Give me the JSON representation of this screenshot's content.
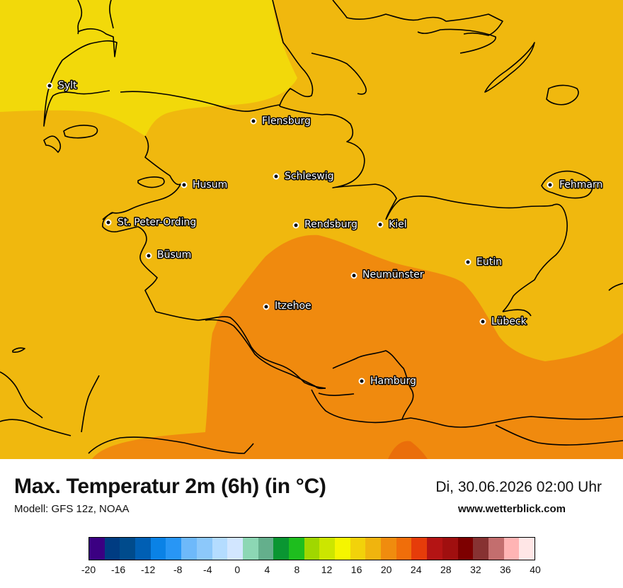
{
  "header": {
    "title": "Max. Temperatur 2m (6h) (in °C)",
    "model": "Modell: GFS 12z, NOAA",
    "datetime": "Di, 30.06.2026 02:00 Uhr",
    "website": "www.wetterblick.com"
  },
  "map": {
    "colors": {
      "zone_16_18": "#f2d90a",
      "zone_18_20": "#f0b80e",
      "zone_20_22": "#f08a0e",
      "zone_22_24": "#ea6e0a",
      "coastline": "#000000"
    },
    "cities": [
      {
        "name": "Sylt",
        "label": "Sylt"
      },
      {
        "name": "Flensburg",
        "label": "Flensburg"
      },
      {
        "name": "Husum",
        "label": "Husum"
      },
      {
        "name": "Schleswig",
        "label": "Schleswig"
      },
      {
        "name": "Fehmarn",
        "label": "Fehmarn"
      },
      {
        "name": "St. Peter-Ording",
        "label": "St. Peter-Ording"
      },
      {
        "name": "Rendsburg",
        "label": "Rendsburg"
      },
      {
        "name": "Kiel",
        "label": "Kiel"
      },
      {
        "name": "Büsum",
        "label": "Büsum"
      },
      {
        "name": "Eutin",
        "label": "Eutin"
      },
      {
        "name": "Neumünster",
        "label": "Neumünster"
      },
      {
        "name": "Itzehoe",
        "label": "Itzehoe"
      },
      {
        "name": "Lübeck",
        "label": "Lübeck"
      },
      {
        "name": "Hamburg",
        "label": "Hamburg"
      }
    ]
  },
  "legend": {
    "colors": [
      "#3b0082",
      "#003c82",
      "#004b8c",
      "#005fb4",
      "#0a82e6",
      "#2896f5",
      "#6eb9fa",
      "#8cc8fa",
      "#b4dcff",
      "#d2e6ff",
      "#8cd7b4",
      "#64af8c",
      "#0a9632",
      "#1ebe1e",
      "#a0d700",
      "#cce600",
      "#f5f500",
      "#f2d20a",
      "#f0b40e",
      "#f08c0e",
      "#f06e0a",
      "#e63c0a",
      "#b41414",
      "#a00f0f",
      "#7d0000",
      "#873232",
      "#c36e6e",
      "#ffb4b4",
      "#ffe6e6"
    ],
    "ticks": [
      "-20",
      "-16",
      "-12",
      "-8",
      "-4",
      "0",
      "4",
      "8",
      "12",
      "16",
      "20",
      "24",
      "28",
      "32",
      "36",
      "40"
    ]
  }
}
